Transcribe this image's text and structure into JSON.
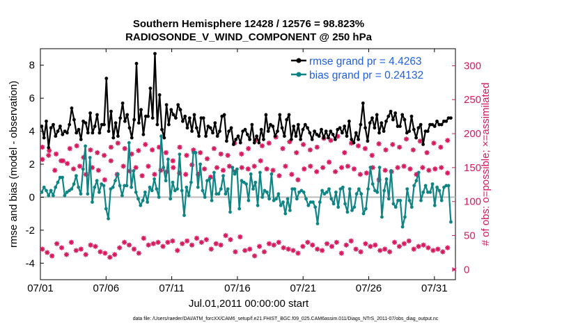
{
  "chart_data": {
    "type": "line",
    "title": "Southern Hemisphere 12428 / 12576 = 98.823%",
    "subtitle": "RADIOSONDE_V_WIND_COMPONENT @ 250 hPa",
    "xlabel": "Jul.01,2011 00:00:00 start",
    "ylabel_left": "rmse and bias (model - observation)",
    "ylabel_right": "# of obs: o=possible; ×=assimilated",
    "footer": "data file: /Users/raeder/DAI/ATM_forcXX/CAM6_setup/f.e21.FHIST_BGC.f09_025.CAM6assim.011/Diags_NTrS_2011-07/obs_diag_output.nc",
    "x_range": [
      0,
      31.6
    ],
    "y_left_range": [
      -5,
      9
    ],
    "y_right_range": [
      -15,
      325
    ],
    "x_ticks": [
      {
        "value": 0,
        "label": "07/01"
      },
      {
        "value": 5,
        "label": "07/06"
      },
      {
        "value": 10,
        "label": "07/11"
      },
      {
        "value": 15,
        "label": "07/16"
      },
      {
        "value": 20,
        "label": "07/21"
      },
      {
        "value": 25,
        "label": "07/26"
      },
      {
        "value": 30,
        "label": "07/31"
      }
    ],
    "y_left_ticks": [
      -4,
      -2,
      0,
      2,
      4,
      6,
      8
    ],
    "y_right_ticks": [
      0,
      50,
      100,
      150,
      200,
      250,
      300
    ],
    "legend": [
      "rmse grand pr = 4.4263",
      "bias grand pr = 0.24132"
    ],
    "colors": {
      "rmse": "#000000",
      "bias": "#0e8484",
      "obs": "#d6195f",
      "legend_text": "#1f5fe0",
      "zero_line": "#bbbbbb"
    },
    "series": [
      {
        "name": "rmse",
        "axis": "left",
        "values": [
          4.3,
          3.6,
          4.6,
          3.0,
          4.2,
          4.4,
          3.7,
          4.0,
          4.3,
          3.8,
          4.0,
          3.9,
          4.4,
          5.4,
          4.7,
          3.9,
          4.1,
          3.5,
          4.6,
          4.5,
          3.9,
          5.1,
          3.9,
          4.3,
          5.0,
          3.9,
          4.4,
          4.4,
          7.2,
          4.0,
          5.2,
          3.6,
          4.5,
          3.7,
          4.8,
          5.7,
          4.6,
          5.0,
          4.2,
          3.6,
          4.7,
          8.1,
          4.5,
          5.3,
          3.8,
          4.9,
          4.9,
          6.6,
          4.8,
          8.7,
          4.4,
          6.2,
          4.1,
          3.6,
          5.6,
          4.4,
          5.3,
          5.0,
          4.8,
          5.6,
          5.3,
          4.6,
          4.9,
          4.2,
          4.8,
          4.0,
          5.0,
          4.2,
          3.7,
          4.8,
          4.8,
          3.7,
          4.3,
          4.2,
          3.9,
          4.5,
          3.7,
          4.0,
          4.9,
          5.0,
          3.4,
          4.0,
          4.2,
          3.2,
          3.5,
          3.7,
          3.3,
          4.0,
          4.1,
          3.8,
          3.5,
          4.4,
          3.3,
          3.7,
          3.3,
          4.1,
          3.5,
          5.0,
          4.0,
          4.4,
          4.3,
          3.7,
          4.0,
          5.0,
          4.2,
          3.7,
          4.7,
          5.0,
          3.5,
          4.3,
          3.7,
          4.4,
          3.5,
          4.1,
          4.4,
          4.2,
          3.9,
          3.5,
          4.0,
          3.8,
          3.7,
          4.1,
          3.6,
          4.0,
          3.6,
          4.0,
          3.8,
          3.5,
          4.1,
          4.2,
          3.9,
          4.3,
          3.7,
          4.6,
          3.5,
          3.3,
          3.9,
          3.5,
          4.4,
          5.7,
          4.2,
          3.4,
          4.5,
          4.8,
          4.2,
          5.0,
          3.9,
          4.5,
          4.0,
          4.6,
          4.9,
          5.2,
          4.7,
          5.1,
          4.3,
          4.3,
          5.0,
          4.7,
          3.9,
          4.0,
          4.9,
          4.1,
          3.6,
          4.2,
          4.4,
          3.2,
          4.0,
          4.0,
          4.4,
          4.4,
          4.3,
          4.6,
          4.4,
          4.4,
          4.6,
          4.6,
          4.8,
          4.8
        ]
      },
      {
        "name": "bias",
        "axis": "left",
        "values": [
          0.3,
          0.6,
          0.4,
          0.1,
          0.4,
          0.1,
          0.6,
          0.9,
          1.2,
          1.2,
          0.1,
          0.3,
          0.4,
          0.5,
          0.8,
          1.3,
          0.6,
          0.2,
          1.7,
          3.1,
          0.2,
          2.4,
          -0.3,
          0.6,
          1.0,
          0.3,
          0.8,
          0.7,
          -0.7,
          -1.3,
          0.5,
          0.6,
          1.0,
          1.4,
          0.7,
          0.1,
          0.7,
          0.7,
          3.3,
          0.6,
          1.6,
          0.3,
          -0.1,
          -0.5,
          -0.2,
          0.3,
          -0.3,
          0.6,
          0.4,
          1.1,
          0.5,
          0.0,
          3.7,
          1.8,
          1.0,
          2.3,
          -0.1,
          0.9,
          0.4,
          0.5,
          2.6,
          0.4,
          -1.1,
          0.6,
          0.1,
          0.9,
          2.7,
          2.7,
          0.6,
          2.0,
          0.4,
          0.0,
          1.0,
          1.1,
          -0.2,
          1.5,
          0.2,
          0.2,
          0.5,
          1.3,
          0.2,
          0.5,
          -0.9,
          1.8,
          1.4,
          1.7,
          -0.7,
          1.0,
          0.9,
          0.8,
          -0.2,
          1.4,
          0.5,
          0.9,
          -0.5,
          1.5,
          0.0,
          0.4,
          0.3,
          -0.1,
          1.4,
          -0.2,
          -0.1,
          0.2,
          -0.5,
          -0.3,
          -1.0,
          -0.1,
          -0.8,
          0.5,
          0.5,
          -0.1,
          0.3,
          0.4,
          0.3,
          -0.1,
          -0.5,
          -0.3,
          -0.3,
          -0.6,
          -1.6,
          -0.3,
          0.4,
          0.2,
          0.3,
          0.5,
          -0.1,
          -0.4,
          0.3,
          -0.6,
          0.5,
          0.6,
          -0.4,
          -0.9,
          0.5,
          -0.8,
          -0.6,
          0.2,
          0.5,
          0.2,
          -1.0,
          -0.7,
          0.5,
          1.8,
          0.8,
          0.4,
          0.3,
          1.8,
          -1.2,
          0.4,
          1.1,
          -0.1,
          1.6,
          -0.4,
          -0.6,
          -0.2,
          -0.2,
          -1.8,
          -1.2,
          0.5,
          -0.2,
          -0.6,
          0.7,
          1.0,
          1.5,
          -0.2,
          0.3,
          0.7,
          0.3,
          0.3,
          0.8,
          -0.5,
          0.6,
          0.4,
          -0.2,
          0.6,
          0.7,
          0.7,
          -1.5
        ]
      },
      {
        "name": "obs_high",
        "axis": "right",
        "values": [
          180,
          175,
          170,
          160,
          178,
          182,
          165,
          176,
          172,
          168,
          180,
          186,
          178,
          170,
          175,
          184,
          176,
          180,
          172,
          160,
          180,
          168,
          176,
          172,
          163,
          178,
          170,
          168,
          186,
          170,
          178,
          190,
          182,
          186,
          195,
          178,
          188,
          172,
          184,
          176,
          180,
          193,
          190,
          196,
          172,
          186,
          182,
          178,
          168,
          185,
          176,
          184,
          180,
          192,
          176,
          189,
          172,
          186,
          180,
          190
        ]
      },
      {
        "name": "obs_mid",
        "axis": "right",
        "values": [
          162,
          168,
          146,
          160,
          156,
          148,
          152,
          140,
          150,
          146,
          132,
          160,
          140,
          152,
          145,
          150,
          138,
          152,
          140,
          146,
          144,
          150,
          142,
          140,
          154,
          140,
          148,
          136,
          150,
          146,
          152,
          144,
          150,
          148,
          152,
          160,
          148,
          146,
          138,
          152,
          140,
          132,
          148,
          152,
          144,
          150,
          158,
          144,
          150,
          152,
          148,
          140,
          142,
          150,
          132,
          146,
          144,
          150,
          152,
          148,
          140,
          150,
          146,
          148,
          150,
          142
        ]
      },
      {
        "name": "obs_low",
        "axis": "right",
        "values": [
          30,
          25,
          20,
          38,
          32,
          22,
          40,
          28,
          30,
          22,
          36,
          34,
          26,
          24,
          18,
          22,
          32,
          40,
          36,
          30,
          24,
          46,
          36,
          38,
          40,
          34,
          40,
          42,
          28,
          38,
          42,
          36,
          46,
          40,
          44,
          30,
          38,
          36,
          50,
          44,
          26,
          48,
          28,
          30,
          20,
          34,
          26,
          38,
          36,
          40,
          32,
          30,
          28,
          24,
          34,
          40,
          36,
          30,
          28,
          38,
          34,
          40,
          24,
          36,
          42,
          30,
          26,
          38,
          34,
          36,
          28,
          30,
          26,
          40,
          34,
          38,
          42,
          30,
          34,
          36,
          32,
          28,
          30,
          26,
          32
        ]
      }
    ]
  }
}
